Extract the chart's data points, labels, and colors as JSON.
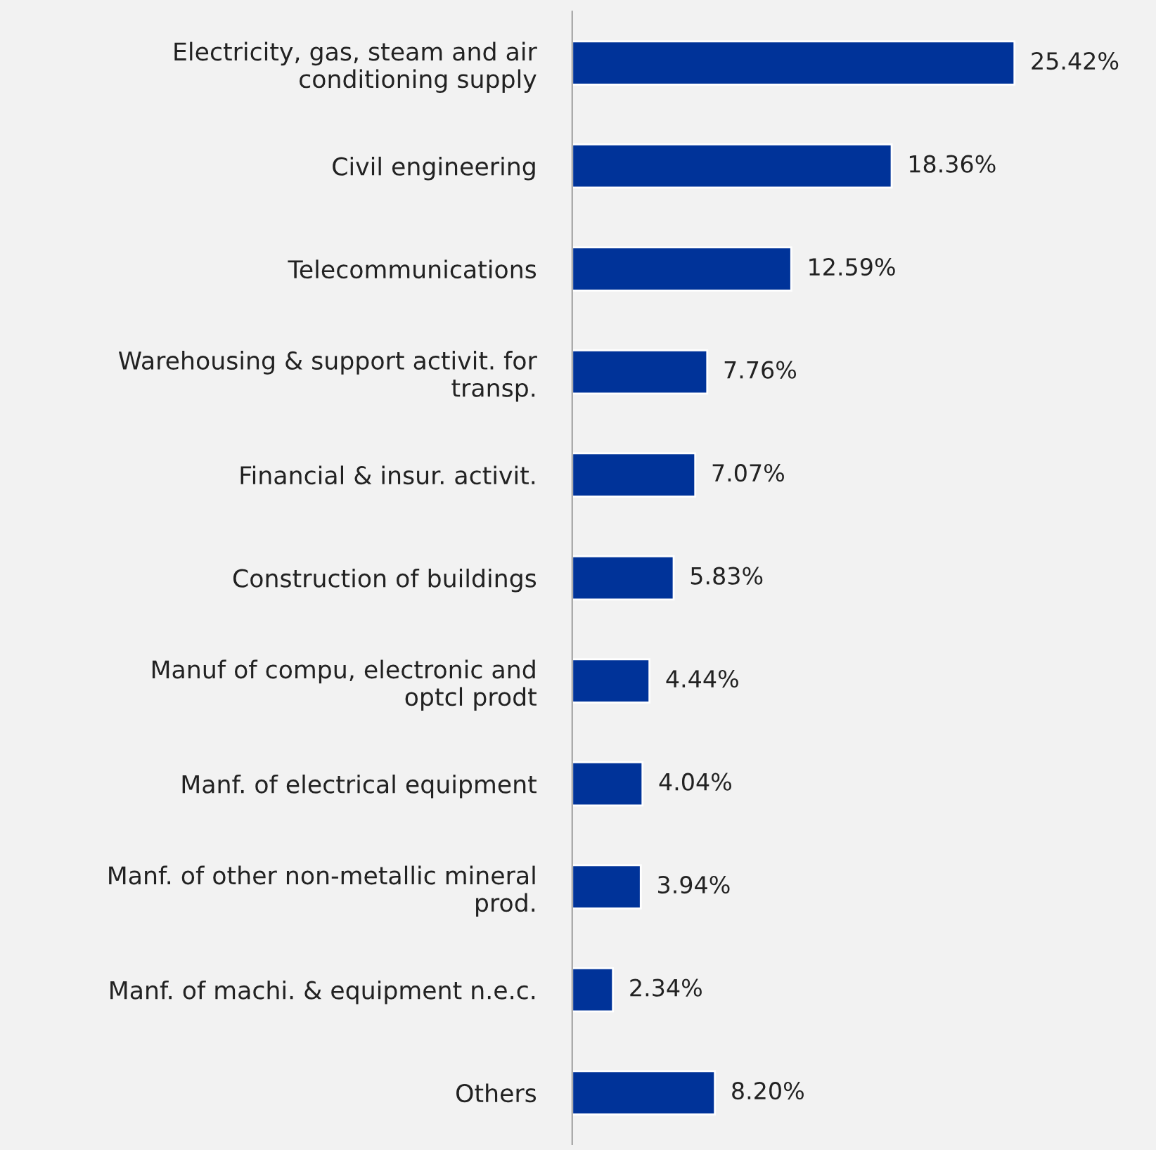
{
  "chart_data": {
    "type": "bar",
    "orientation": "horizontal",
    "categories": [
      "Electricity, gas, steam and air\nconditioning supply",
      "Civil engineering",
      "Telecommunications",
      "Warehousing & support activit. for\ntransp.",
      "Financial & insur. activit.",
      "Construction of buildings",
      "Manuf of compu, electronic and\noptcl prodt",
      "Manf. of electrical equipment",
      "Manf. of other non-metallic mineral\nprod.",
      "Manf. of machi. & equipment n.e.c.",
      "Others"
    ],
    "values": [
      25.42,
      18.36,
      12.59,
      7.76,
      7.07,
      5.83,
      4.44,
      4.04,
      3.94,
      2.34,
      8.2
    ],
    "value_labels": [
      "25.42%",
      "18.36%",
      "12.59%",
      "7.76%",
      "7.07%",
      "5.83%",
      "4.44%",
      "4.04%",
      "3.94%",
      "2.34%",
      "8.20%"
    ],
    "color": "#003399",
    "grid": false,
    "legend": false
  }
}
